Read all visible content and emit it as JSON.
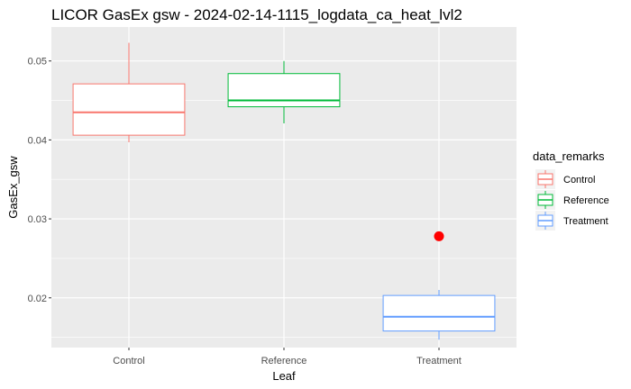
{
  "chart_data": {
    "type": "box",
    "title": "LICOR GasEx gsw - 2024-02-14-1115_logdata_ca_heat_lvl2",
    "xlabel": "Leaf",
    "ylabel": "GasEx_gsw",
    "categories": [
      "Control",
      "Reference",
      "Treatment"
    ],
    "ylim": [
      0.0137,
      0.0543
    ],
    "yticks": [
      0.02,
      0.03,
      0.04,
      0.05
    ],
    "ytick_labels": [
      "0.02",
      "0.03",
      "0.04",
      "0.05"
    ],
    "grid": true,
    "legend": {
      "title": "data_remarks",
      "position": "right",
      "entries": [
        "Control",
        "Reference",
        "Treatment"
      ]
    },
    "series": [
      {
        "name": "Control",
        "color": "#F8766D",
        "whisker_low": 0.0397,
        "q1": 0.0406,
        "median": 0.0435,
        "q3": 0.0471,
        "whisker_high": 0.0523
      },
      {
        "name": "Reference",
        "color": "#00BA38",
        "whisker_low": 0.0421,
        "q1": 0.0442,
        "median": 0.045,
        "q3": 0.0484,
        "whisker_high": 0.05
      },
      {
        "name": "Treatment",
        "color": "#619CFF",
        "whisker_low": 0.0147,
        "q1": 0.0158,
        "median": 0.0176,
        "q3": 0.0203,
        "whisker_high": 0.021
      }
    ],
    "points": [
      {
        "category": "Treatment",
        "y": 0.0278,
        "color": "#FF0000"
      }
    ]
  }
}
